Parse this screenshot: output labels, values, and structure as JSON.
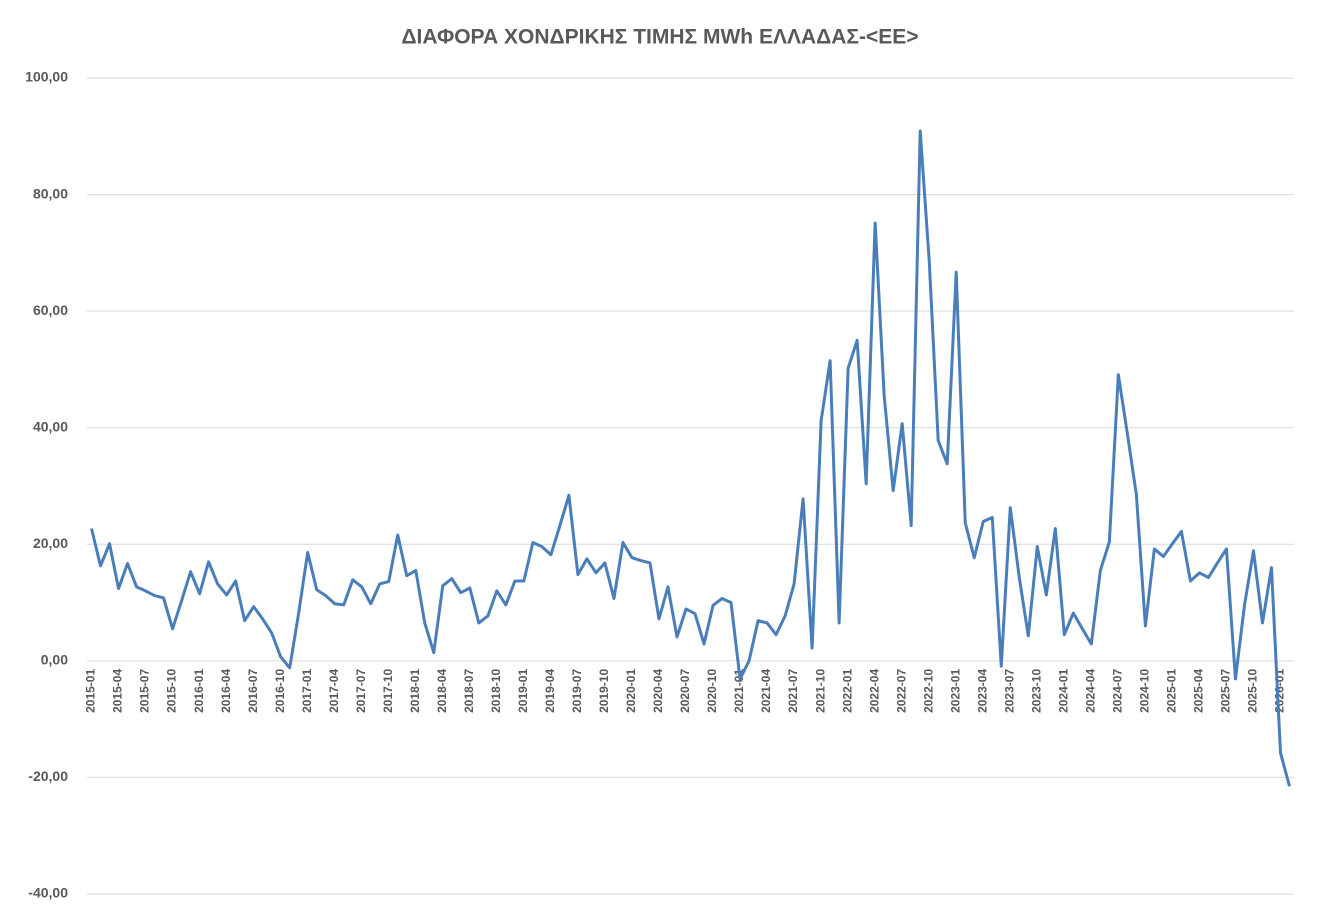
{
  "chart_data": {
    "type": "line",
    "title": "ΔΙΑΦΟΡΑ ΧΟΝΔΡΙΚΗΣ ΤΙΜΗΣ MWh ΕΛΛΑΔΑΣ-<ΕΕ>",
    "categories": [
      "2015-01",
      null,
      null,
      "2015-04",
      null,
      null,
      "2015-07",
      null,
      null,
      "2015-10",
      null,
      null,
      "2016-01",
      null,
      null,
      "2016-04",
      null,
      null,
      "2016-07",
      null,
      null,
      "2016-10",
      null,
      null,
      "2017-01",
      null,
      null,
      "2017-04",
      null,
      null,
      "2017-07",
      null,
      null,
      "2017-10",
      null,
      null,
      "2018-01",
      null,
      null,
      "2018-04",
      null,
      null,
      "2018-07",
      null,
      null,
      "2018-10",
      null,
      null,
      "2019-01",
      null,
      null,
      "2019-04",
      null,
      null,
      "2019-07",
      null,
      null,
      "2019-10",
      null,
      null,
      "2020-01",
      null,
      null,
      "2020-04",
      null,
      null,
      "2020-07",
      null,
      null,
      "2020-10",
      null,
      null,
      "2021-01",
      null,
      null,
      "2021-04",
      null,
      null,
      "2021-07",
      null,
      null,
      "2021-10",
      null,
      null,
      "2022-01",
      null,
      null,
      "2022-04",
      null,
      null,
      "2022-07",
      null,
      null,
      "2022-10",
      null,
      null,
      "2023-01",
      null,
      null,
      "2023-04",
      null,
      null,
      "2023-07",
      null,
      null,
      "2023-10",
      null,
      null,
      "2024-01",
      null,
      null,
      "2024-04",
      null,
      null,
      "2024-07",
      null,
      null,
      "2024-10",
      null,
      null,
      "2025-01",
      null,
      null,
      "2025-04",
      null,
      null,
      "2025-07",
      null,
      null,
      "2025-10",
      null,
      null,
      "2026-01",
      null
    ],
    "values": [
      22.7,
      16.3,
      20.1,
      12.4,
      16.7,
      12.7,
      12.0,
      11.2,
      10.8,
      5.5,
      10.3,
      15.3,
      11.5,
      17.0,
      13.2,
      11.3,
      13.7,
      6.9,
      9.3,
      7.2,
      4.8,
      0.7,
      -1.2,
      8.2,
      18.6,
      12.2,
      11.2,
      9.8,
      9.6,
      13.9,
      12.7,
      9.8,
      13.2,
      13.6,
      21.6,
      14.6,
      15.5,
      6.5,
      1.4,
      12.9,
      14.1,
      11.7,
      12.5,
      6.5,
      7.7,
      12.0,
      9.6,
      13.7,
      13.7,
      20.3,
      19.6,
      18.2,
      23.2,
      28.4,
      14.8,
      17.5,
      15.1,
      16.8,
      10.7,
      20.3,
      17.7,
      17.2,
      16.8,
      7.2,
      12.7,
      4.1,
      8.9,
      8.1,
      2.9,
      9.5,
      10.7,
      10.0,
      -3.1,
      0,
      6.9,
      6.5,
      4.5,
      7.7,
      13.2,
      27.8,
      2.2,
      41.2,
      51.5,
      6.5,
      50.2,
      55.0,
      30.4,
      75.1,
      45.5,
      29.2,
      40.7,
      23.2,
      90.9,
      68.7,
      37.8,
      33.8,
      66.7,
      23.7,
      17.7,
      23.9,
      24.6,
      -0.9,
      26.3,
      14.3,
      4.3,
      19.6,
      11.3,
      22.7,
      4.5,
      8.2,
      5.5,
      2.9,
      15.5,
      20.4,
      49.1,
      39.0,
      28.5,
      6.0,
      19.2,
      17.9,
      20.1,
      22.2,
      13.7,
      15.1,
      14.3,
      16.8,
      19.2,
      -3.1,
      9.5,
      18.9,
      6.5,
      16.0,
      -15.8,
      -21.5
    ],
    "color": "#4a7ebb",
    "ylim": [
      -40,
      100
    ],
    "yticks": [
      {
        "value": -40,
        "label": "-40,00"
      },
      {
        "value": -20,
        "label": "-20,00"
      },
      {
        "value": 0,
        "label": "0,00"
      },
      {
        "value": 20,
        "label": "20,00"
      },
      {
        "value": 40,
        "label": "40,00"
      },
      {
        "value": 60,
        "label": "60,00"
      },
      {
        "value": 80,
        "label": "80,00"
      },
      {
        "value": 100,
        "label": "100,00"
      }
    ],
    "grid": true
  }
}
